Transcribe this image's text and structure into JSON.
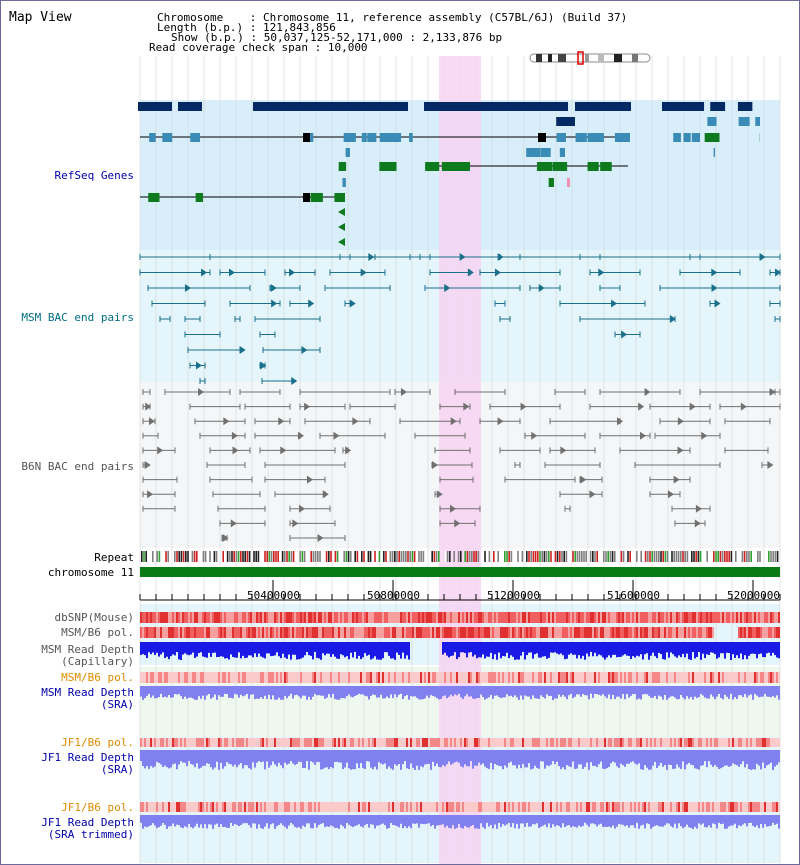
{
  "view_title": "Map View",
  "info": {
    "chromosome_key": "Chromosome",
    "chromosome_val": ": Chromosome 11, reference assembly (C57BL/6J) (Build 37)",
    "length_key": "Length (b.p.)",
    "length_val": ": 121,843,856",
    "show_key": "Show (b.p.)",
    "show_val": ": 50,037,125-52,171,000 : 2,133,876 bp",
    "coverage_key": "Read coverage check span",
    "coverage_val": ": 10,000"
  },
  "tracks": {
    "refseq": "RefSeq Genes",
    "msm_bac": "MSM BAC end pairs",
    "b6n_bac": "B6N BAC end pairs",
    "repeat": "Repeat",
    "chromosome": "chromosome 11",
    "dbsnp": "dbSNP(Mouse)",
    "msm_b6_pol": "MSM/B6 pol.",
    "msm_depth_cap_1": "MSM Read Depth",
    "msm_depth_cap_2": "(Capillary)",
    "msm_b6_pol_sra": "MSM/B6 pol.",
    "msm_depth_sra_1": "MSM Read Depth",
    "msm_depth_sra_2": "(SRA)",
    "jf1_pol_1": "JF1/B6 pol.",
    "jf1_depth_1": "JF1 Read Depth",
    "jf1_depth_1b": "(SRA)",
    "jf1_pol_2": "JF1/B6 pol.",
    "jf1_depth_2": "JF1 Read Depth",
    "jf1_depth_2b": "(SRA trimmed)"
  },
  "axis_ticks": [
    "50400000",
    "50800000",
    "51200000",
    "51600000",
    "52000000"
  ],
  "colors": {
    "refseq_bg": "#d8eefa",
    "msm_bg": "#e4f6fb",
    "b6n_bg": "#f4f6f8",
    "highlight": "#f7d4f2",
    "gene_dark": "#052a63",
    "gene_mid": "#3a8cb7",
    "gene_green": "#0d7a1e",
    "chromosome_bar": "#0a7a14",
    "depth_blue": "#1a1ae6",
    "depth_light": "#8080f0",
    "snp_red": "#e02020"
  }
}
